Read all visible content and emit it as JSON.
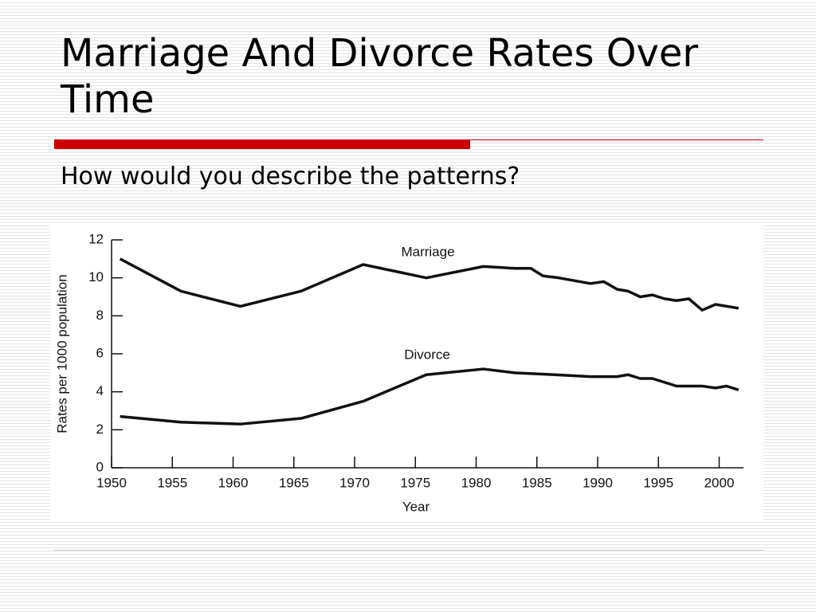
{
  "slide": {
    "title": "Marriage And Divorce Rates Over Time",
    "subtitle": "How would you describe the patterns?"
  },
  "chart_data": {
    "type": "line",
    "x_label": "Year",
    "y_label": "Rates per 1000 population",
    "xlim": [
      1950,
      2002
    ],
    "xticks": [
      1950,
      1955,
      1960,
      1965,
      1970,
      1975,
      1980,
      1985,
      1990,
      1995,
      2000
    ],
    "ylim": [
      0,
      12
    ],
    "yticks": [
      0,
      2,
      4,
      6,
      8,
      10,
      12
    ],
    "series": [
      {
        "name": "Marriage",
        "color": "#111111",
        "x": [
          1950.7,
          1955.7,
          1960.6,
          1965.6,
          1970.7,
          1975.9,
          1980.6,
          1983.2,
          1984.5,
          1985.5,
          1986.8,
          1989.4,
          1990.5,
          1991.6,
          1992.5,
          1993.5,
          1994.5,
          1995.5,
          1996.5,
          1997.5,
          1998.6,
          1999.7,
          2001.6
        ],
        "values": [
          11.0,
          9.3,
          8.5,
          9.3,
          10.7,
          10.0,
          10.6,
          10.5,
          10.5,
          10.1,
          10.0,
          9.7,
          9.8,
          9.4,
          9.3,
          9.0,
          9.1,
          8.9,
          8.8,
          8.9,
          8.3,
          8.6,
          8.4
        ]
      },
      {
        "name": "Divorce",
        "color": "#111111",
        "x": [
          1950.7,
          1955.7,
          1960.6,
          1965.6,
          1970.7,
          1975.9,
          1980.6,
          1983.2,
          1986.5,
          1989.4,
          1991.6,
          1992.5,
          1993.5,
          1994.5,
          1996.5,
          1998.6,
          1999.7,
          2000.6,
          2001.6
        ],
        "values": [
          2.7,
          2.4,
          2.3,
          2.6,
          3.5,
          4.9,
          5.2,
          5.0,
          4.9,
          4.8,
          4.8,
          4.9,
          4.7,
          4.7,
          4.3,
          4.3,
          4.2,
          4.3,
          4.1
        ]
      }
    ]
  }
}
